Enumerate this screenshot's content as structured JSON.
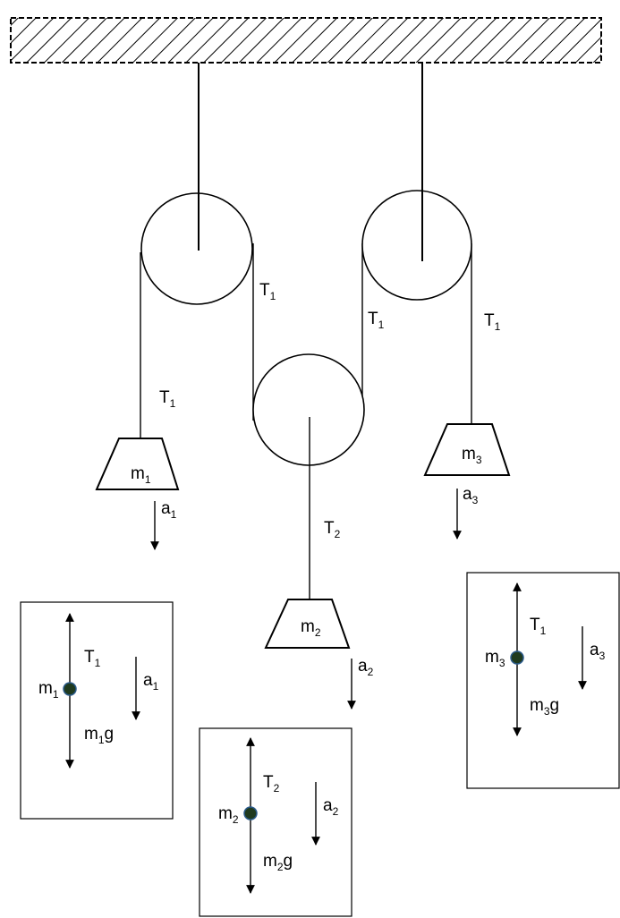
{
  "labels": {
    "mass1": {
      "base": "m",
      "sub": "1"
    },
    "mass2": {
      "base": "m",
      "sub": "2"
    },
    "mass3": {
      "base": "m",
      "sub": "3"
    },
    "tension1": {
      "base": "T",
      "sub": "1"
    },
    "tension2": {
      "base": "T",
      "sub": "2"
    },
    "accel1": {
      "base": "a",
      "sub": "1"
    },
    "accel2": {
      "base": "a",
      "sub": "2"
    },
    "accel3": {
      "base": "a",
      "sub": "3"
    },
    "weight1": {
      "base": "m",
      "sub": "1",
      "suffix": "g"
    },
    "weight2": {
      "base": "m",
      "sub": "2",
      "suffix": "g"
    },
    "weight3": {
      "base": "m",
      "sub": "3",
      "suffix": "g"
    }
  },
  "colors": {
    "line": "#000000",
    "mass_dot_fill": "#1f3a1f",
    "mass_dot_stroke": "#2a5a8a"
  }
}
